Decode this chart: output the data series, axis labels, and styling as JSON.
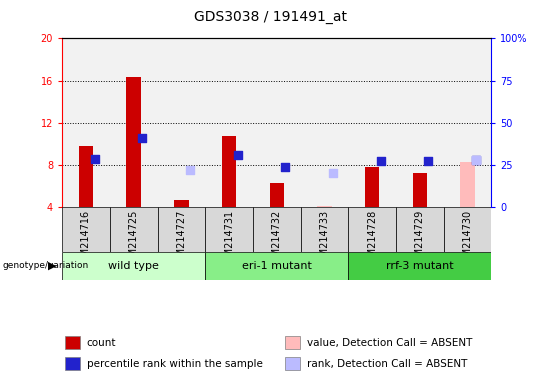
{
  "title": "GDS3038 / 191491_at",
  "samples": [
    "GSM214716",
    "GSM214725",
    "GSM214727",
    "GSM214731",
    "GSM214732",
    "GSM214733",
    "GSM214728",
    "GSM214729",
    "GSM214730"
  ],
  "count_values": [
    9.8,
    16.3,
    4.7,
    10.8,
    6.3,
    null,
    7.8,
    7.3,
    null
  ],
  "absent_count": [
    null,
    null,
    null,
    null,
    null,
    4.1,
    null,
    null,
    8.3
  ],
  "rank_values": [
    8.6,
    10.6,
    null,
    9.0,
    7.8,
    null,
    8.4,
    8.4,
    8.5
  ],
  "absent_rank": [
    null,
    null,
    7.5,
    null,
    null,
    7.3,
    null,
    null,
    8.5
  ],
  "ylim_left": [
    4,
    20
  ],
  "ylim_right": [
    0,
    100
  ],
  "yticks_left": [
    4,
    8,
    12,
    16,
    20
  ],
  "yticks_right": [
    0,
    25,
    50,
    75,
    100
  ],
  "ytick_labels_right": [
    "0",
    "25",
    "50",
    "75",
    "100%"
  ],
  "grid_values": [
    8,
    12,
    16
  ],
  "genotype_groups": [
    {
      "label": "wild type",
      "start": 0,
      "end": 2
    },
    {
      "label": "eri-1 mutant",
      "start": 3,
      "end": 5
    },
    {
      "label": "rrf-3 mutant",
      "start": 6,
      "end": 8
    }
  ],
  "bar_color_red": "#cc0000",
  "bar_color_blue": "#2222cc",
  "bar_color_pink": "#ffbbbb",
  "bar_color_lightblue": "#bbbbff",
  "bar_width": 0.3,
  "rank_marker_size": 40,
  "background_plot": "#f2f2f2",
  "sample_box_color": "#d8d8d8",
  "genotype_color_light": "#ccffcc",
  "genotype_color_mid": "#88ee88",
  "genotype_color_dark": "#44cc44",
  "title_fontsize": 10,
  "tick_label_fontsize": 7,
  "legend_fontsize": 7.5,
  "genotype_fontsize": 8
}
